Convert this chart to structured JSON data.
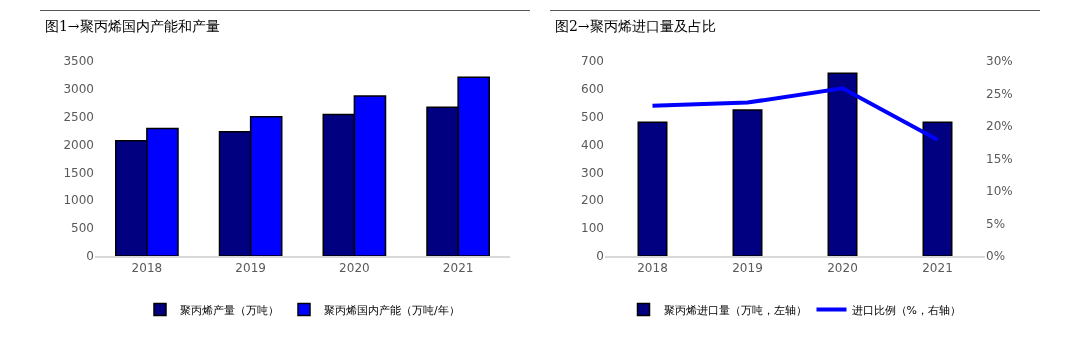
{
  "chart_data": [
    {
      "type": "bar",
      "title": "图1→聚丙烯国内产能和产量",
      "categories": [
        "2018",
        "2019",
        "2020",
        "2021"
      ],
      "series": [
        {
          "name": "聚丙烯产量（万吨）",
          "color": "#000080",
          "values": [
            2070,
            2230,
            2540,
            2670
          ]
        },
        {
          "name": "聚丙烯国内产能（万吨/年）",
          "color": "#0000ff",
          "values": [
            2290,
            2500,
            2870,
            3210
          ]
        }
      ],
      "ylim": [
        0,
        3500
      ],
      "yticks": [
        0,
        500,
        1000,
        1500,
        2000,
        2500,
        3000,
        3500
      ],
      "grid": false,
      "legend": "bottom"
    },
    {
      "type": "bar",
      "title": "图2→聚丙烯进口量及占比",
      "categories": [
        "2018",
        "2019",
        "2020",
        "2021"
      ],
      "series": [
        {
          "name": "聚丙烯进口量（万吨，左轴）",
          "color": "#000080",
          "values": [
            480,
            524,
            656,
            480
          ]
        },
        {
          "name": "进口比例（%，右轴）",
          "type": "line",
          "axis": "y2",
          "color": "#0000ff",
          "values": [
            23.1,
            23.6,
            25.8,
            17.9
          ]
        }
      ],
      "ylim": [
        0,
        700
      ],
      "yticks": [
        0,
        100,
        200,
        300,
        400,
        500,
        600,
        700
      ],
      "y2lim": [
        0,
        30
      ],
      "y2ticks": [
        {
          "value": 0,
          "label": "0%"
        },
        {
          "value": 5,
          "label": "5%"
        },
        {
          "value": 10,
          "label": "10%"
        },
        {
          "value": 15,
          "label": "15%"
        },
        {
          "value": 20,
          "label": "20%"
        },
        {
          "value": 25,
          "label": "25%"
        },
        {
          "value": 30,
          "label": "30%"
        }
      ],
      "grid": false,
      "legend": "bottom",
      "marker": "none",
      "line_style": "solid"
    }
  ]
}
